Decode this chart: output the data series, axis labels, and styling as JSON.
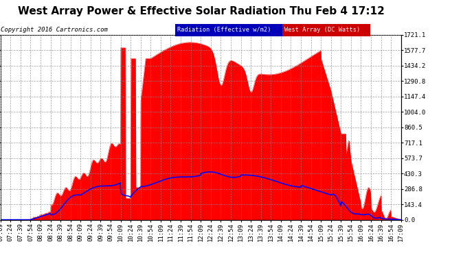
{
  "title": "West Array Power & Effective Solar Radiation Thu Feb 4 17:12",
  "copyright": "Copyright 2016 Cartronics.com",
  "legend_radiation": "Radiation (Effective w/m2)",
  "legend_west": "West Array (DC Watts)",
  "legend_radiation_bg": "#0000bb",
  "legend_west_bg": "#cc0000",
  "background_color": "#ffffff",
  "plot_bg_color": "#ffffff",
  "grid_color": "#888888",
  "y_ticks": [
    0.0,
    143.4,
    286.8,
    430.3,
    573.7,
    717.1,
    860.5,
    1004.0,
    1147.4,
    1290.8,
    1434.2,
    1577.7,
    1721.1
  ],
  "x_tick_labels": [
    "07:09",
    "07:24",
    "07:39",
    "07:54",
    "08:09",
    "08:24",
    "08:39",
    "08:54",
    "09:09",
    "09:24",
    "09:39",
    "09:54",
    "10:09",
    "10:24",
    "10:39",
    "10:54",
    "11:09",
    "11:24",
    "11:39",
    "11:54",
    "12:09",
    "12:24",
    "12:39",
    "12:54",
    "13:09",
    "13:24",
    "13:39",
    "13:54",
    "14:09",
    "14:24",
    "14:39",
    "14:54",
    "15:09",
    "15:24",
    "15:39",
    "15:54",
    "16:09",
    "16:24",
    "16:39",
    "16:54",
    "17:09"
  ],
  "title_fontsize": 11,
  "copyright_fontsize": 6.5,
  "tick_fontsize": 6.5,
  "ymax": 1721.1,
  "ymin": 0.0
}
